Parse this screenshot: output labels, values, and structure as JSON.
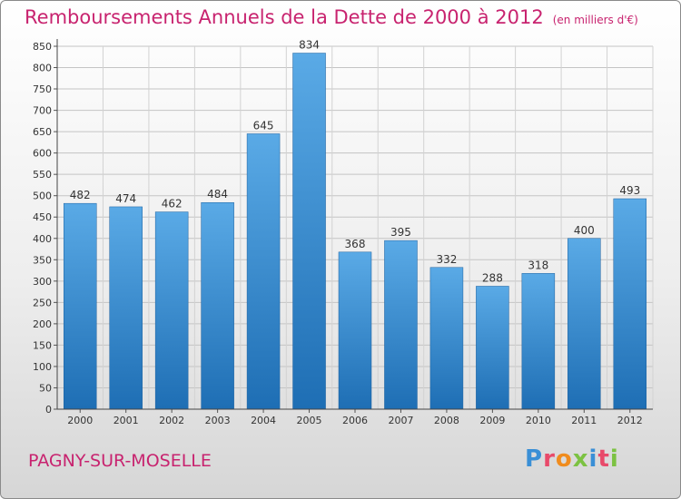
{
  "header": {
    "title": "Remboursements Annuels de la Dette de 2000 à 2012",
    "subtitle": "(en milliers d'€)"
  },
  "footer": {
    "city": "PAGNY-SUR-MOSELLE",
    "logo": "Proxiti"
  },
  "colors": {
    "accent": "#c8236f",
    "bar_top": "#5aaae6",
    "bar_bottom": "#1e6eb4",
    "logo_letters": [
      "#3a8fd6",
      "#e84a6a",
      "#f08c1e",
      "#7cc242",
      "#3a8fd6",
      "#e84a6a",
      "#7cc242"
    ]
  },
  "chart_data": {
    "type": "bar",
    "categories": [
      "2000",
      "2001",
      "2002",
      "2003",
      "2004",
      "2005",
      "2006",
      "2007",
      "2008",
      "2009",
      "2010",
      "2011",
      "2012"
    ],
    "values": [
      482,
      474,
      462,
      484,
      645,
      834,
      368,
      395,
      332,
      288,
      318,
      400,
      493
    ],
    "ylim": [
      0,
      850
    ],
    "yticks": [
      0,
      50,
      100,
      150,
      200,
      250,
      300,
      350,
      400,
      450,
      500,
      550,
      600,
      650,
      700,
      750,
      800,
      850
    ],
    "grid": true,
    "xlabel": "",
    "ylabel": ""
  }
}
